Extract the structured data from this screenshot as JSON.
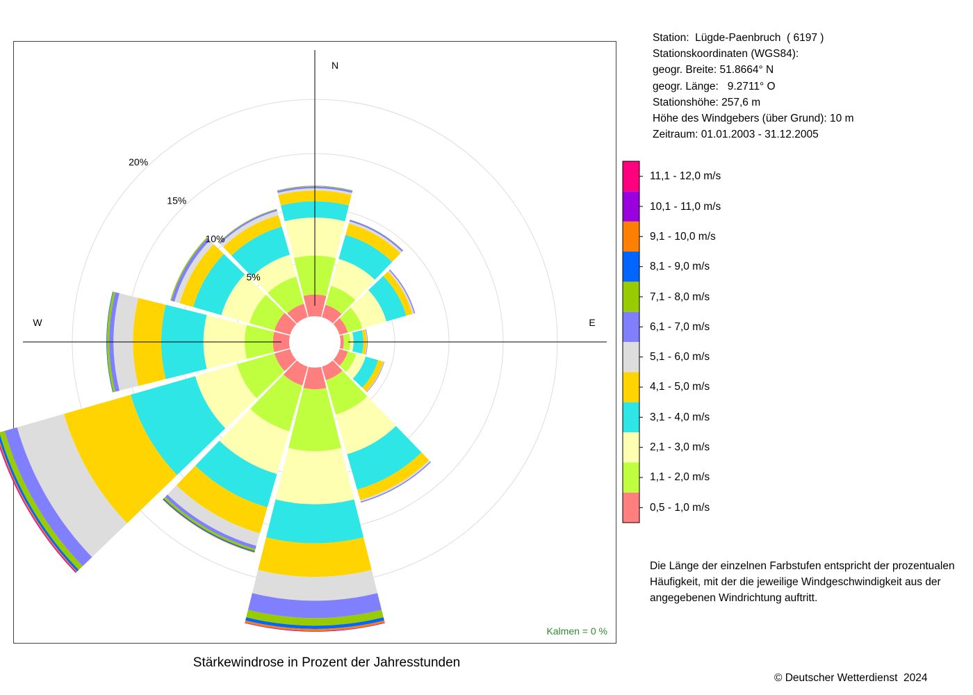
{
  "station": {
    "lines": [
      "Station:  Lügde-Paenbruch  ( 6197 )",
      "Stationskoordinaten (WGS84):",
      "geogr. Breite: 51.8664° N",
      "geogr. Länge:   9.2711° O",
      "Stationshöhe: 257,6 m",
      "Höhe des Windgebers (über Grund): 10 m",
      "Zeitraum: 01.01.2003 - 31.12.2005"
    ]
  },
  "note": {
    "lines": [
      "Die Länge der einzelnen Farbstufen entspricht der prozentualen",
      "Häufigkeit, mit der die jeweilige Windgeschwindigkeit aus der",
      "angegebenen Windrichtung auftritt."
    ]
  },
  "caption": "Stärkewindrose in Prozent der Jahresstunden",
  "copyright": "© Deutscher Wetterdienst  2024",
  "calm": "Kalmen  =  0 %",
  "colors": {
    "calm": "#2e8b2e",
    "grid": "#dddddd",
    "axis": "#000000"
  },
  "chart_data": {
    "type": "wind-rose",
    "direction_labels": [
      "N",
      "E",
      "W"
    ],
    "ring_labels": [
      "5%",
      "10%",
      "15%",
      "20%"
    ],
    "ring_values": [
      5,
      10,
      15,
      20
    ],
    "sectors_deg": [
      0,
      30,
      60,
      90,
      120,
      150,
      180,
      210,
      240,
      270,
      300,
      330
    ],
    "classes": [
      {
        "label": "0,5 - 1,0 m/s",
        "color": "#ff7f7f"
      },
      {
        "label": "1,1 - 2,0 m/s",
        "color": "#bfff3f"
      },
      {
        "label": "2,1 - 3,0 m/s",
        "color": "#ffffb2"
      },
      {
        "label": "3,1 - 4,0 m/s",
        "color": "#2ee6e6"
      },
      {
        "label": "4,1 - 5,0 m/s",
        "color": "#ffd400"
      },
      {
        "label": "5,1 - 6,0 m/s",
        "color": "#dddddd"
      },
      {
        "label": "6,1 - 7,0 m/s",
        "color": "#8080ff"
      },
      {
        "label": "7,1 - 8,0 m/s",
        "color": "#99cc00"
      },
      {
        "label": "8,1 - 9,0 m/s",
        "color": "#0066ff"
      },
      {
        "label": "9,1 - 10,0 m/s",
        "color": "#ff8000"
      },
      {
        "label": "10,1 - 11,0 m/s",
        "color": "#9900dd"
      },
      {
        "label": "11,1 - 12,0 m/s",
        "color": "#ff007f"
      }
    ],
    "values": [
      [
        2.0,
        3.6,
        3.5,
        1.5,
        1.0,
        0.2,
        0.15,
        0.05,
        0.02,
        0.01,
        0.0,
        0.0
      ],
      [
        1.2,
        1.8,
        2.6,
        2.3,
        1.1,
        0.2,
        0.15,
        0.02,
        0.0,
        0.0,
        0.0,
        0.0
      ],
      [
        0.8,
        1.4,
        2.3,
        1.9,
        0.6,
        0.15,
        0.1,
        0.0,
        0.0,
        0.0,
        0.0,
        0.0
      ],
      [
        0.3,
        0.6,
        0.3,
        0.9,
        0.3,
        0.05,
        0.05,
        0.0,
        0.0,
        0.0,
        0.0,
        0.0
      ],
      [
        0.8,
        0.8,
        0.9,
        1.2,
        0.5,
        0.05,
        0.05,
        0.0,
        0.0,
        0.0,
        0.0,
        0.0
      ],
      [
        1.3,
        3.3,
        3.8,
        3.4,
        1.0,
        0.15,
        0.1,
        0.0,
        0.0,
        0.0,
        0.0,
        0.0
      ],
      [
        2.0,
        5.7,
        4.9,
        3.6,
        3.1,
        2.2,
        1.6,
        0.7,
        0.3,
        0.2,
        0.05,
        0.0
      ],
      [
        1.8,
        4.4,
        4.1,
        3.2,
        2.5,
        1.2,
        0.3,
        0.2,
        0.1,
        0.05,
        0.0,
        0.0
      ],
      [
        1.5,
        3.6,
        4.0,
        6.2,
        6.4,
        4.5,
        1.2,
        0.5,
        0.2,
        0.1,
        0.05,
        0.05
      ],
      [
        1.5,
        2.6,
        3.8,
        3.9,
        2.6,
        1.8,
        0.4,
        0.2,
        0.05,
        0.0,
        0.0,
        0.0
      ],
      [
        1.5,
        2.4,
        2.7,
        2.7,
        1.3,
        0.5,
        0.3,
        0.1,
        0.0,
        0.0,
        0.0,
        0.0
      ],
      [
        1.3,
        2.6,
        2.1,
        2.7,
        1.1,
        0.4,
        0.15,
        0.05,
        0.0,
        0.0,
        0.0,
        0.0
      ]
    ]
  }
}
